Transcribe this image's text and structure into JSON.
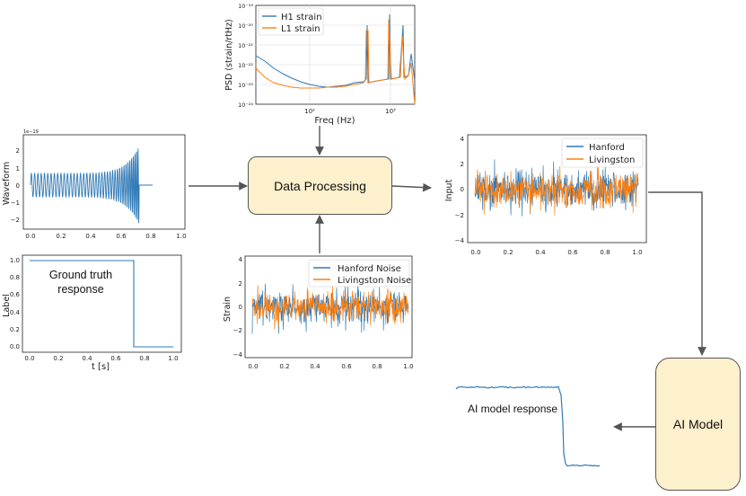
{
  "nodes": {
    "data_processing": "Data Processing",
    "ai_model": "AI Model",
    "ground_truth_line1": "Ground truth",
    "ground_truth_line2": "response",
    "ai_model_response": "AI model response"
  },
  "colors": {
    "blue": "#2f7ab8",
    "orange": "#ff7f0e",
    "box_fill": "#fdf0cc",
    "box_stroke": "#555555"
  },
  "chart_data": [
    {
      "id": "psd",
      "type": "line",
      "xlabel": "Freq (Hz)",
      "ylabel": "PSD (strain/rtHz)",
      "xscale": "log",
      "yscale": "log",
      "x_ticks": [
        "10²",
        "10³"
      ],
      "y_ticks": [
        "10⁻²⁴",
        "10⁻²³",
        "10⁻²²",
        "10⁻²¹",
        "10⁻²⁰",
        "10⁻¹⁹"
      ],
      "legend": [
        "H1 strain",
        "L1 strain"
      ],
      "grid": true,
      "legend_position": "upper-left"
    },
    {
      "id": "waveform",
      "type": "line",
      "ylabel": "Waveform",
      "offset_label": "1e−19",
      "x_ticks": [
        "0.0",
        "0.2",
        "0.4",
        "0.6",
        "0.8",
        "1.0"
      ],
      "y_ticks": [
        "2",
        "1",
        "0",
        "−1",
        "−2"
      ]
    },
    {
      "id": "label",
      "type": "line",
      "xlabel": "t [s]",
      "ylabel": "Label",
      "x_ticks": [
        "0.0",
        "0.2",
        "0.4",
        "0.6",
        "0.8",
        "1.0"
      ],
      "y_ticks": [
        "1.0",
        "0.8",
        "0.6",
        "0.4",
        "0.2",
        "0.0"
      ],
      "step_x": 0.72
    },
    {
      "id": "strain_noise",
      "type": "line",
      "ylabel": "Strain",
      "x_ticks": [
        "0.0",
        "0.2",
        "0.4",
        "0.6",
        "0.8",
        "1.0"
      ],
      "y_ticks": [
        "4",
        "2",
        "0",
        "−2",
        "−4"
      ],
      "legend": [
        "Hanford Noise",
        "Livingston Noise"
      ],
      "legend_position": "upper-right"
    },
    {
      "id": "input",
      "type": "line",
      "ylabel": "Input",
      "x_ticks": [
        "0.0",
        "0.2",
        "0.4",
        "0.6",
        "0.8",
        "1.0"
      ],
      "y_ticks": [
        "4",
        "2",
        "0",
        "−2",
        "−4"
      ],
      "legend": [
        "Hanford",
        "Livingston"
      ],
      "legend_position": "upper-right"
    }
  ]
}
